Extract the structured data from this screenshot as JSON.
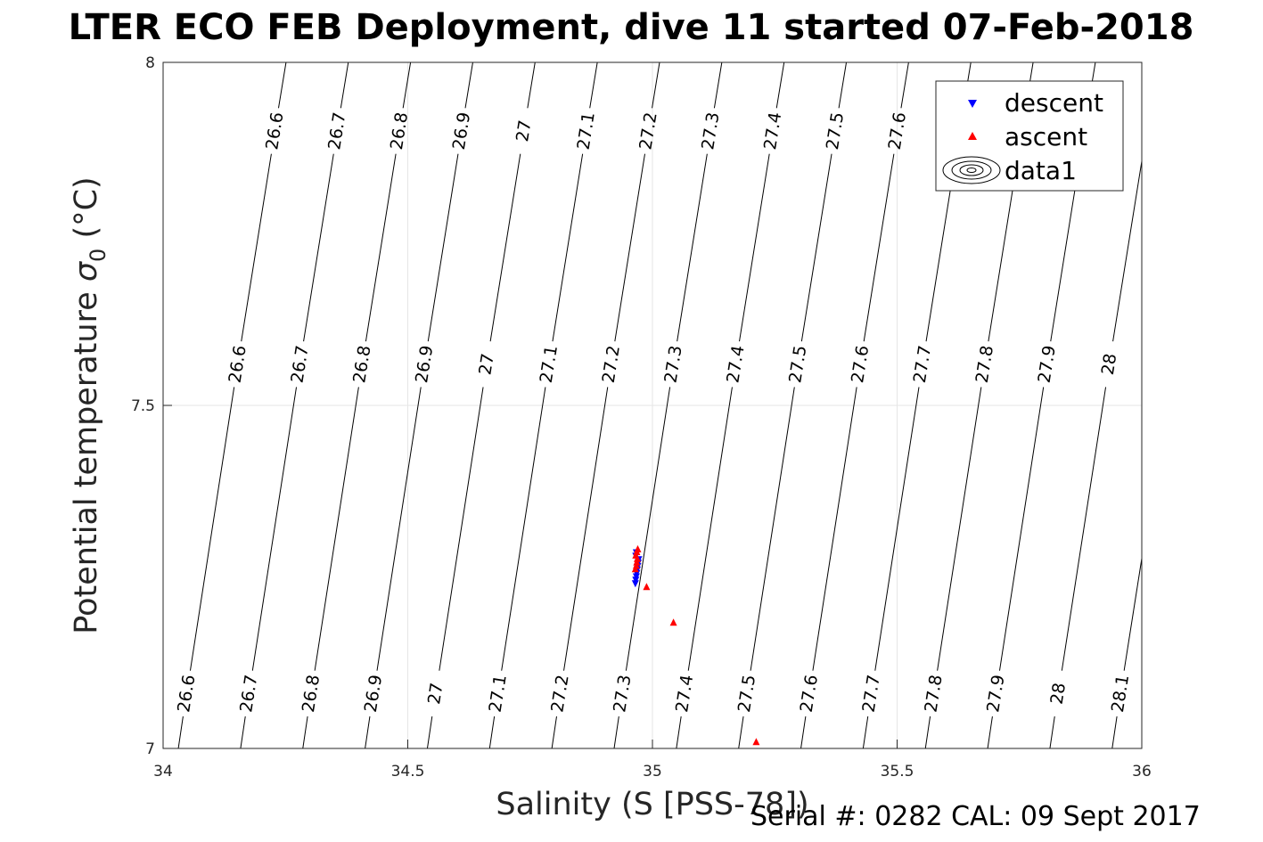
{
  "title": "LTER ECO FEB Deployment, dive 11 started 07-Feb-2018",
  "footer": "Serial #: 0282  CAL: 09 Sept 2017",
  "chart_data": {
    "type": "scatter",
    "title": "LTER ECO FEB Deployment, dive 11 started 07-Feb-2018",
    "xlabel": "Salinity (S [PSS-78])",
    "ylabel_main": "Potential temperature ",
    "ylabel_sigma": "σ",
    "ylabel_sub": "0",
    "ylabel_unit": " (°C)",
    "xlim": [
      34,
      36
    ],
    "ylim": [
      7,
      8
    ],
    "xticks": [
      "34",
      "34.5",
      "35",
      "35.5",
      "36"
    ],
    "yticks": [
      "7",
      "7.5",
      "8"
    ],
    "grid": true,
    "legend": {
      "placement": "top-right",
      "entries": [
        "descent",
        "ascent",
        "data1"
      ]
    },
    "colors": {
      "descent": "#0000ff",
      "ascent": "#ff0000",
      "contour": "#000000"
    },
    "series": [
      {
        "name": "descent",
        "marker": "triangle-down",
        "x": [
          34.965,
          34.966,
          34.967,
          34.968,
          34.969,
          34.97,
          34.971,
          34.972,
          34.966,
          34.967
        ],
        "y": [
          7.24,
          7.245,
          7.25,
          7.255,
          7.26,
          7.265,
          7.27,
          7.275,
          7.28,
          7.285
        ]
      },
      {
        "name": "ascent",
        "marker": "triangle-up",
        "x": [
          34.965,
          34.967,
          34.968,
          34.969,
          34.966,
          34.968,
          34.97,
          34.988,
          35.043,
          35.212
        ],
        "y": [
          7.262,
          7.267,
          7.272,
          7.277,
          7.282,
          7.287,
          7.291,
          7.236,
          7.184,
          7.01
        ]
      }
    ],
    "contours": {
      "levels": [
        "26.6",
        "26.7",
        "26.8",
        "26.9",
        "27",
        "27.1",
        "27.2",
        "27.3",
        "27.4",
        "27.5",
        "27.6",
        "27.7",
        "27.8",
        "27.9",
        "28",
        "28.1"
      ]
    }
  }
}
